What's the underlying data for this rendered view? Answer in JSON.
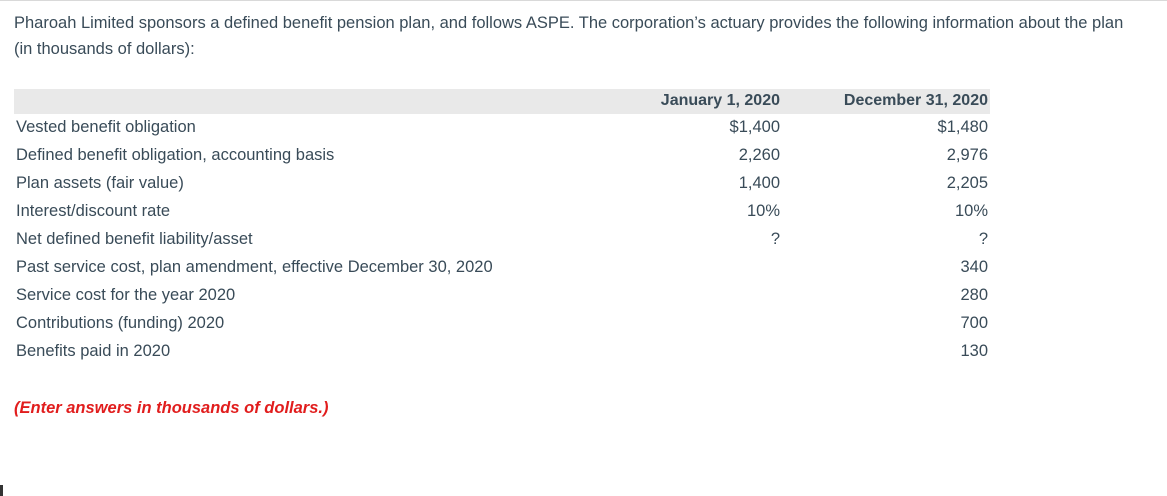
{
  "colors": {
    "body_text": "#394b58",
    "table_header_bg": "#e9e9e9",
    "note_red": "#e11d1d"
  },
  "intro": "Pharoah Limited sponsors a defined benefit pension plan, and follows ASPE. The corporation’s actuary provides the following information about the plan (in thousands of dollars):",
  "table": {
    "jan_header": "January 1, 2020",
    "dec_header": "December 31, 2020",
    "rows": [
      {
        "label": "Vested benefit obligation",
        "jan": "$1,400",
        "dec": "$1,480"
      },
      {
        "label": "Defined benefit obligation, accounting basis",
        "jan": "2,260",
        "dec": "2,976"
      },
      {
        "label": "Plan assets (fair value)",
        "jan": "1,400",
        "dec": "2,205"
      },
      {
        "label": "Interest/discount rate",
        "jan": "10%",
        "dec": "10%"
      },
      {
        "label": "Net defined benefit liability/asset",
        "jan": "?",
        "dec": "?"
      },
      {
        "label": "Past service cost, plan amendment, effective December 30, 2020",
        "jan": "",
        "dec": "340"
      },
      {
        "label": "Service cost for the year 2020",
        "jan": "",
        "dec": "280"
      },
      {
        "label": "Contributions (funding) 2020",
        "jan": "",
        "dec": "700"
      },
      {
        "label": "Benefits paid in 2020",
        "jan": "",
        "dec": "130"
      }
    ]
  },
  "note": "(Enter answers in thousands of dollars.)"
}
